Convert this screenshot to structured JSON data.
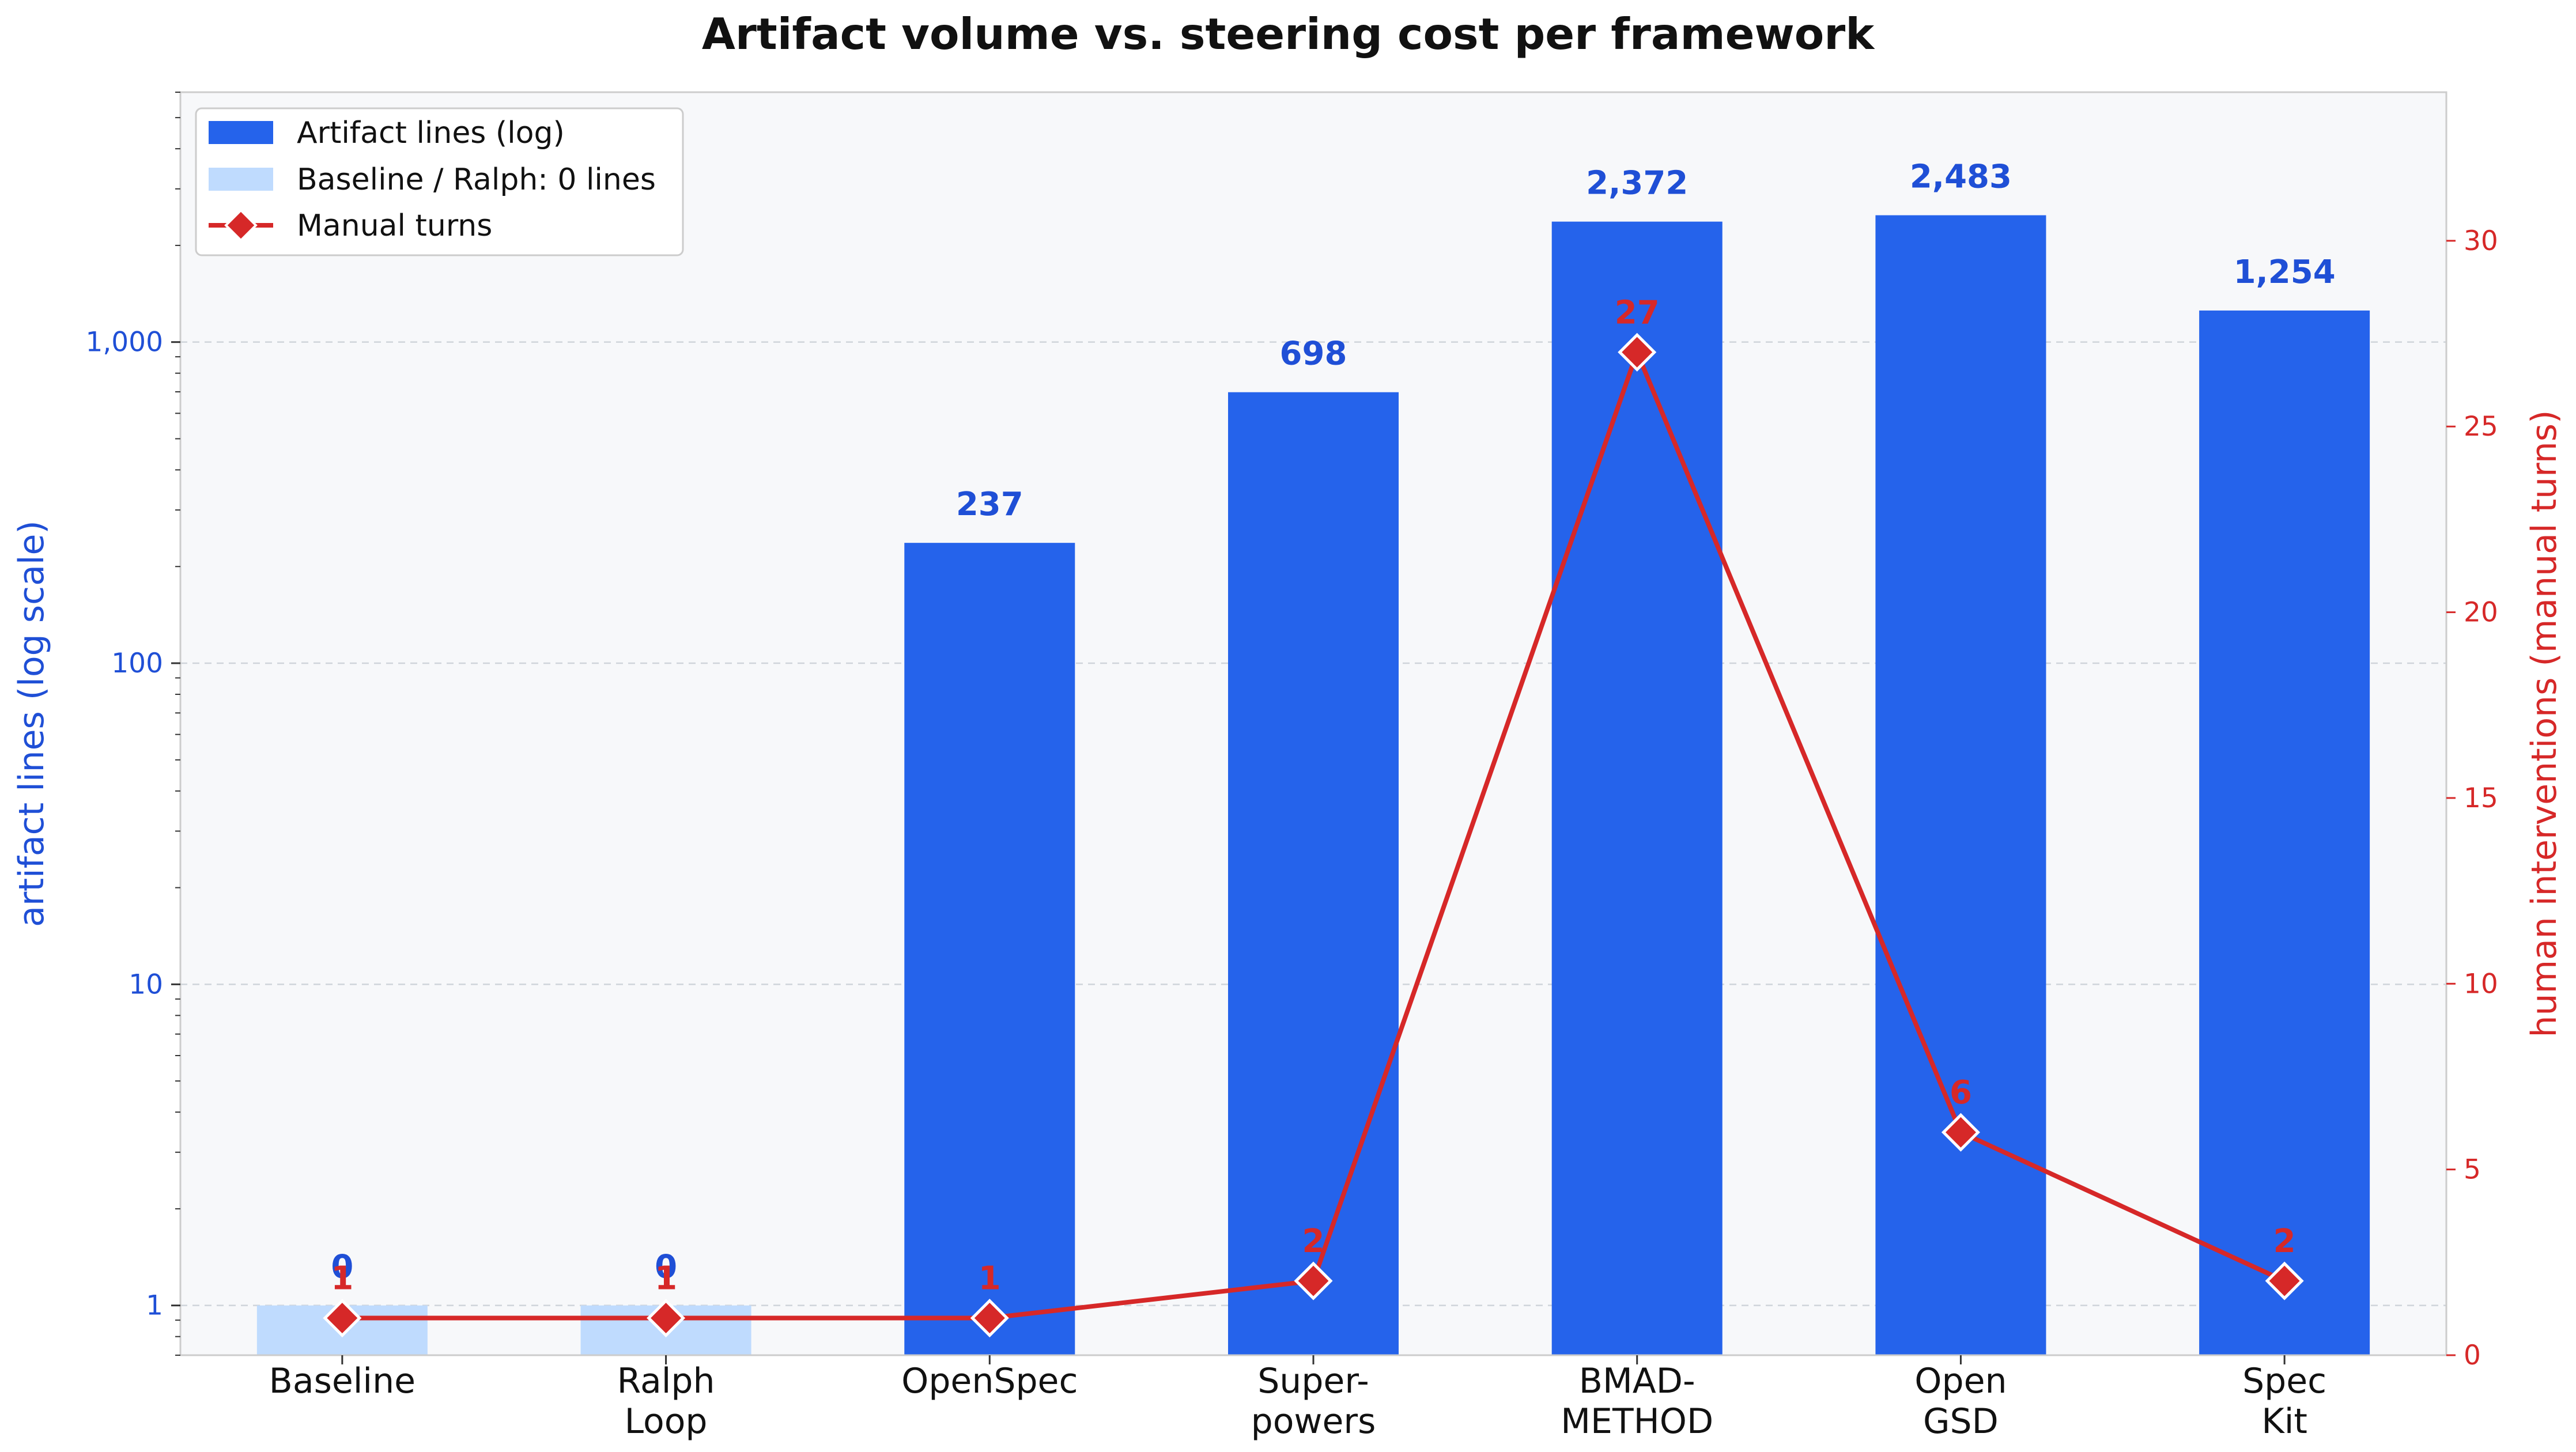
{
  "chart_data": {
    "type": "bar",
    "title": "Artifact volume vs. steering cost per framework",
    "categories": [
      "Baseline",
      "Ralph\nLoop",
      "OpenSpec",
      "Super-\npowers",
      "BMAD-\nMETHOD",
      "Open\nGSD",
      "Spec\nKit"
    ],
    "ylabel_left": "artifact lines (log scale)",
    "ylabel_right": "human interventions (manual turns)",
    "y_left_scale": "log",
    "y_left_ticks": [
      1,
      10,
      100,
      1000
    ],
    "y_left_tick_labels": [
      "1",
      "10",
      "100",
      "1,000"
    ],
    "y_left_range": [
      0.7,
      6000
    ],
    "y_right_ticks": [
      0,
      5,
      10,
      15,
      20,
      25,
      30
    ],
    "y_right_range": [
      0,
      34
    ],
    "grid": true,
    "legend_position": "top-left",
    "series": [
      {
        "name": "Artifact lines (log)",
        "axis": "left",
        "kind": "bar",
        "color": "#2563eb",
        "values": [
          0,
          0,
          237,
          698,
          2372,
          2483,
          1254
        ],
        "labels": [
          "0",
          "0",
          "237",
          "698",
          "2,372",
          "2,483",
          "1,254"
        ]
      },
      {
        "name": "Baseline / Ralph: 0 lines",
        "axis": "left",
        "kind": "bar-placeholder",
        "color": "#bfdbfe",
        "values": [
          1,
          1,
          null,
          null,
          null,
          null,
          null
        ]
      },
      {
        "name": "Manual turns",
        "axis": "right",
        "kind": "line",
        "color": "#d62828",
        "values": [
          1,
          1,
          1,
          2,
          27,
          6,
          2
        ],
        "labels": [
          "1",
          "1",
          "1",
          "2",
          "27",
          "6",
          "2"
        ]
      }
    ]
  }
}
